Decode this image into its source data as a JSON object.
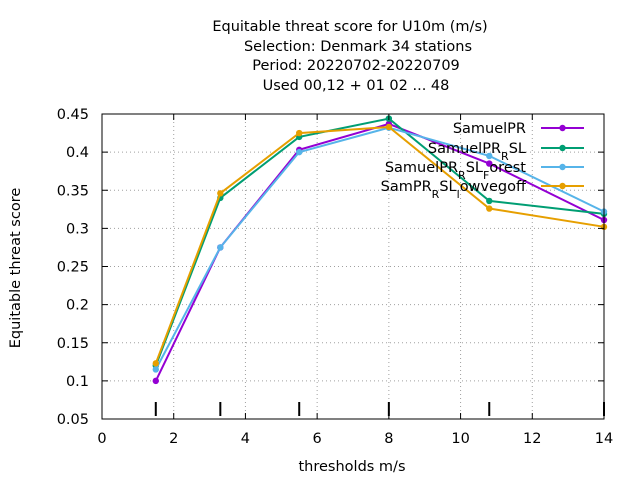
{
  "chart_data": {
    "type": "line",
    "title": [
      "Equitable threat score  for U10m (m/s)",
      "Selection: Denmark     34 stations",
      "Period: 20220702-20220709",
      "Used  00,12  + 01 02 ... 48"
    ],
    "xlabel": "thresholds m/s",
    "ylabel": "Equitable threat score",
    "xlim": [
      0,
      14
    ],
    "ylim": [
      0.05,
      0.45
    ],
    "xticks": [
      0,
      2,
      4,
      6,
      8,
      10,
      12,
      14
    ],
    "yticks": [
      0.05,
      0.1,
      0.15,
      0.2,
      0.25,
      0.3,
      0.35,
      0.4,
      0.45
    ],
    "ytick_labels": [
      "0.05",
      "0.1",
      "0.15",
      "0.2",
      "0.25",
      "0.3",
      "0.35",
      "0.4",
      "0.45"
    ],
    "threshold_marks": [
      1.5,
      3.3,
      5.5,
      8,
      10.8,
      14
    ],
    "grid": true,
    "legend_position": "top-right",
    "x": [
      1.5,
      3.3,
      5.5,
      8,
      10.8,
      14
    ],
    "series": [
      {
        "name": "SamuelPR",
        "name_parts": [
          [
            "SamuelPR",
            "n"
          ]
        ],
        "color": "#9400d3",
        "values": [
          0.1,
          0.275,
          0.403,
          0.437,
          0.385,
          0.311
        ]
      },
      {
        "name": "SamuelPR_RSL",
        "name_parts": [
          [
            "SamuelPR",
            "n"
          ],
          [
            "R",
            "sub"
          ],
          [
            "SL",
            "n"
          ]
        ],
        "color": "#009e73",
        "values": [
          0.12,
          0.34,
          0.42,
          0.444,
          0.336,
          0.319
        ]
      },
      {
        "name": "SamuelPR_RSL_Forest",
        "name_parts": [
          [
            "SamuelPR",
            "n"
          ],
          [
            "R",
            "sub"
          ],
          [
            "SL",
            "n"
          ],
          [
            "F",
            "sub"
          ],
          [
            "orest",
            "n"
          ]
        ],
        "color": "#56b4e9",
        "values": [
          0.115,
          0.275,
          0.4,
          0.432,
          0.395,
          0.322
        ]
      },
      {
        "name": "SamPR_RSL_lowvegoff",
        "name_parts": [
          [
            "SamPR",
            "n"
          ],
          [
            "R",
            "sub"
          ],
          [
            "SL",
            "n"
          ],
          [
            "l",
            "sub"
          ],
          [
            "owvegoff",
            "n"
          ]
        ],
        "color": "#e69f00",
        "values": [
          0.123,
          0.346,
          0.425,
          0.433,
          0.326,
          0.302
        ]
      }
    ]
  }
}
